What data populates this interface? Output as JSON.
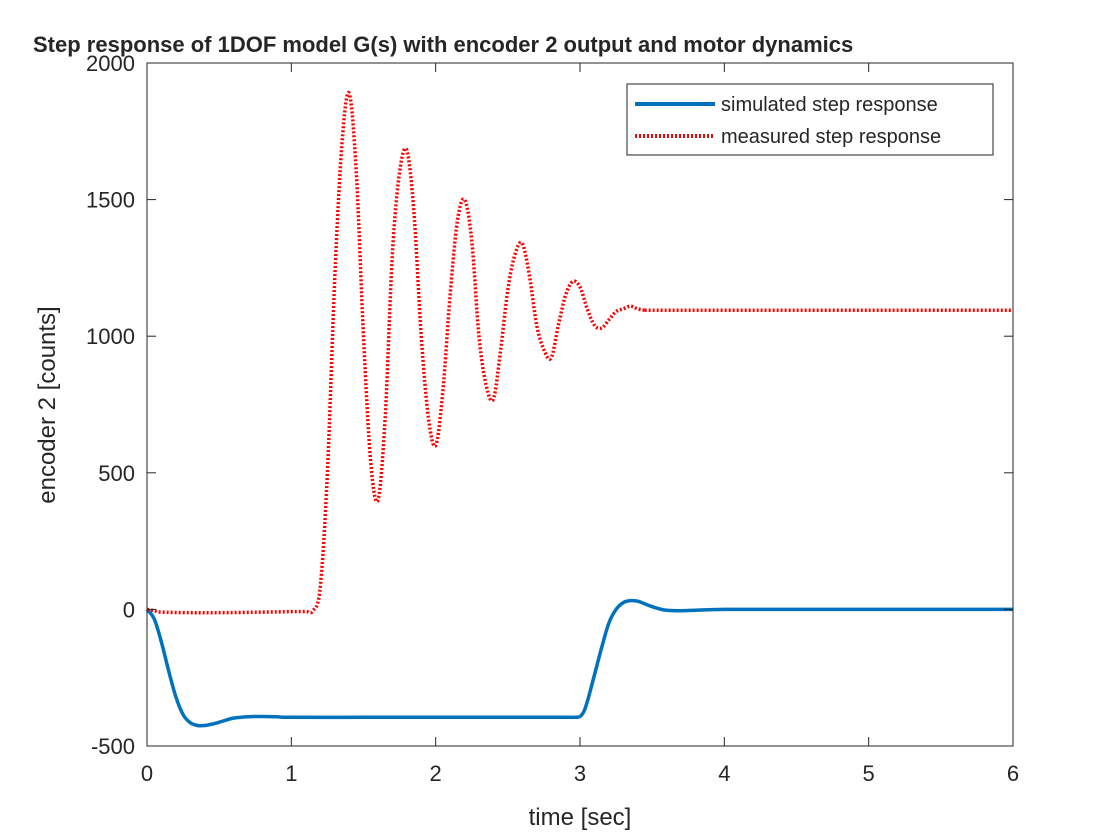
{
  "chart_data": {
    "type": "line",
    "title": "Step response of 1DOF model G(s) with encoder 2 output and motor dynamics",
    "xlabel": "time [sec]",
    "ylabel": "encoder 2 [counts]",
    "xlim": [
      0,
      6
    ],
    "ylim": [
      -500,
      2000
    ],
    "xticks": [
      "0",
      "1",
      "2",
      "3",
      "4",
      "5",
      "6"
    ],
    "yticks": [
      "-500",
      "0",
      "500",
      "1000",
      "1500",
      "2000"
    ],
    "grid": false,
    "legend_position": "top-right",
    "series": [
      {
        "name": "simulated step response",
        "color": "#0072BD",
        "style": "solid",
        "x": [
          0,
          0.05,
          0.1,
          0.15,
          0.2,
          0.25,
          0.3,
          0.35,
          0.4,
          0.45,
          0.5,
          0.55,
          0.6,
          0.7,
          0.8,
          0.9,
          1.0,
          1.5,
          2.0,
          2.5,
          2.9,
          2.95,
          3.0,
          3.03,
          3.06,
          3.1,
          3.15,
          3.2,
          3.25,
          3.3,
          3.35,
          3.4,
          3.45,
          3.5,
          3.55,
          3.6,
          3.7,
          3.8,
          4.0,
          4.5,
          5.0,
          5.5,
          6.0
        ],
        "y": [
          0,
          -35,
          -120,
          -225,
          -320,
          -385,
          -415,
          -425,
          -425,
          -420,
          -413,
          -405,
          -398,
          -393,
          -392,
          -393,
          -395,
          -395,
          -395,
          -395,
          -395,
          -395,
          -392,
          -370,
          -320,
          -240,
          -140,
          -50,
          0,
          25,
          32,
          30,
          20,
          10,
          2,
          -3,
          -5,
          -3,
          0,
          0,
          0,
          0,
          0
        ]
      },
      {
        "name": "measured step response",
        "color": "#FF0000",
        "style": "dotted",
        "x": [
          0,
          0.05,
          0.1,
          0.3,
          0.5,
          0.8,
          1.0,
          1.1,
          1.15,
          1.2,
          1.25,
          1.3,
          1.35,
          1.4,
          1.45,
          1.5,
          1.55,
          1.6,
          1.65,
          1.7,
          1.75,
          1.8,
          1.85,
          1.9,
          1.95,
          2.0,
          2.05,
          2.1,
          2.15,
          2.2,
          2.25,
          2.3,
          2.35,
          2.4,
          2.45,
          2.5,
          2.55,
          2.6,
          2.65,
          2.7,
          2.75,
          2.8,
          2.85,
          2.9,
          2.95,
          3.0,
          3.05,
          3.1,
          3.15,
          3.2,
          3.25,
          3.3,
          3.35,
          3.4,
          3.45,
          3.5,
          4.0,
          5.0,
          6.0
        ],
        "y": [
          0,
          -5,
          -10,
          -12,
          -12,
          -10,
          -8,
          -8,
          -5,
          80,
          500,
          1200,
          1700,
          1890,
          1600,
          1000,
          540,
          400,
          700,
          1300,
          1600,
          1680,
          1450,
          1000,
          700,
          600,
          800,
          1150,
          1420,
          1500,
          1350,
          1000,
          820,
          770,
          950,
          1170,
          1300,
          1340,
          1220,
          1040,
          950,
          920,
          1040,
          1150,
          1200,
          1180,
          1100,
          1040,
          1030,
          1060,
          1090,
          1100,
          1110,
          1100,
          1095,
          1095,
          1095,
          1095,
          1095
        ]
      }
    ]
  }
}
